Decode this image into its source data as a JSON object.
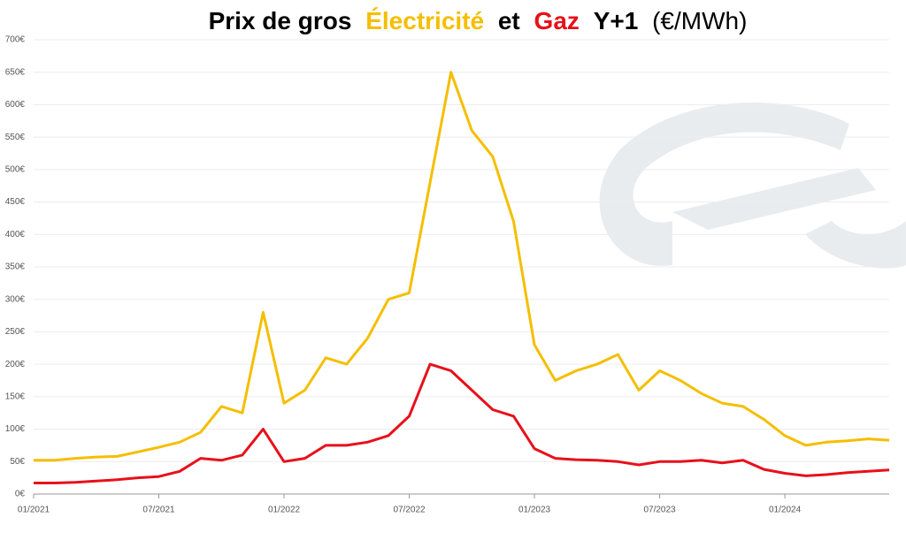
{
  "chart_data": {
    "type": "line",
    "title": {
      "prefix": "Prix de gros",
      "joiner": "et",
      "suffix": "Y+1",
      "unit": "(€/MWh)"
    },
    "x": [
      "2021-01",
      "2021-02",
      "2021-03",
      "2021-04",
      "2021-05",
      "2021-06",
      "2021-07",
      "2021-08",
      "2021-09",
      "2021-10",
      "2021-11",
      "2021-12",
      "2022-01",
      "2022-02",
      "2022-03",
      "2022-04",
      "2022-05",
      "2022-06",
      "2022-07",
      "2022-08",
      "2022-09",
      "2022-10",
      "2022-11",
      "2022-12",
      "2023-01",
      "2023-02",
      "2023-03",
      "2023-04",
      "2023-05",
      "2023-06",
      "2023-07",
      "2023-08",
      "2023-09",
      "2023-10",
      "2023-11",
      "2023-12",
      "2024-01",
      "2024-02",
      "2024-03",
      "2024-04",
      "2024-05",
      "2024-06"
    ],
    "series": [
      {
        "name": "Électricité",
        "color": "#f5be00",
        "values": [
          52,
          52,
          55,
          57,
          58,
          65,
          72,
          80,
          95,
          135,
          125,
          280,
          140,
          160,
          210,
          200,
          240,
          300,
          310,
          480,
          650,
          560,
          520,
          420,
          230,
          175,
          190,
          200,
          215,
          160,
          190,
          175,
          155,
          140,
          135,
          115,
          90,
          75,
          80,
          82,
          85,
          83
        ]
      },
      {
        "name": "Gaz",
        "color": "#e8101a",
        "values": [
          17,
          17,
          18,
          20,
          22,
          25,
          27,
          35,
          55,
          52,
          60,
          100,
          50,
          55,
          75,
          75,
          80,
          90,
          120,
          200,
          190,
          160,
          130,
          120,
          70,
          55,
          53,
          52,
          50,
          45,
          50,
          50,
          52,
          48,
          52,
          38,
          32,
          28,
          30,
          33,
          35,
          37
        ]
      }
    ],
    "xlim": [
      "2021-01",
      "2024-06"
    ],
    "xticks": [
      {
        "value": "2021-01",
        "label": "01/2021"
      },
      {
        "value": "2021-07",
        "label": "07/2021"
      },
      {
        "value": "2022-01",
        "label": "01/2022"
      },
      {
        "value": "2022-07",
        "label": "07/2022"
      },
      {
        "value": "2023-01",
        "label": "01/2023"
      },
      {
        "value": "2023-07",
        "label": "07/2023"
      },
      {
        "value": "2024-01",
        "label": "01/2024"
      }
    ],
    "ylim": [
      0,
      700
    ],
    "yticks": [
      {
        "value": 0,
        "label": "0€"
      },
      {
        "value": 50,
        "label": "50€"
      },
      {
        "value": 100,
        "label": "100€"
      },
      {
        "value": 150,
        "label": "150€"
      },
      {
        "value": 200,
        "label": "200€"
      },
      {
        "value": 250,
        "label": "250€"
      },
      {
        "value": 300,
        "label": "300€"
      },
      {
        "value": 350,
        "label": "350€"
      },
      {
        "value": 400,
        "label": "400€"
      },
      {
        "value": 450,
        "label": "450€"
      },
      {
        "value": 500,
        "label": "500€"
      },
      {
        "value": 550,
        "label": "550€"
      },
      {
        "value": 600,
        "label": "600€"
      },
      {
        "value": 650,
        "label": "650€"
      },
      {
        "value": 700,
        "label": "700€"
      }
    ],
    "grid": true
  }
}
